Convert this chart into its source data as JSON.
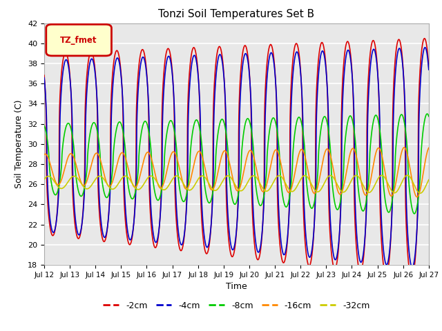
{
  "title": "Tonzi Soil Temperatures Set B",
  "xlabel": "Time",
  "ylabel": "Soil Temperature (C)",
  "ylim": [
    18,
    42
  ],
  "xlim": [
    0,
    360
  ],
  "bg_color": "#e8e8e8",
  "legend_label": "TZ_fmet",
  "series": {
    "-2cm": {
      "color": "#dd0000",
      "lw": 1.2
    },
    "-4cm": {
      "color": "#0000cc",
      "lw": 1.2
    },
    "-8cm": {
      "color": "#00cc00",
      "lw": 1.2
    },
    "-16cm": {
      "color": "#ff8800",
      "lw": 1.2
    },
    "-32cm": {
      "color": "#cccc00",
      "lw": 1.2
    }
  },
  "xtick_labels": [
    "Jul 12",
    "Jul 13",
    "Jul 14",
    "Jul 15",
    "Jul 16",
    "Jul 17",
    "Jul 18",
    "Jul 19",
    "Jul 20",
    "Jul 21",
    "Jul 22",
    "Jul 23",
    "Jul 24",
    "Jul 25",
    "Jul 26",
    "Jul 27"
  ],
  "xtick_positions": [
    0,
    24,
    48,
    72,
    96,
    120,
    144,
    168,
    192,
    216,
    240,
    264,
    288,
    312,
    336,
    360
  ],
  "ytick_positions": [
    18,
    20,
    22,
    24,
    26,
    28,
    30,
    32,
    34,
    36,
    38,
    40,
    42
  ]
}
